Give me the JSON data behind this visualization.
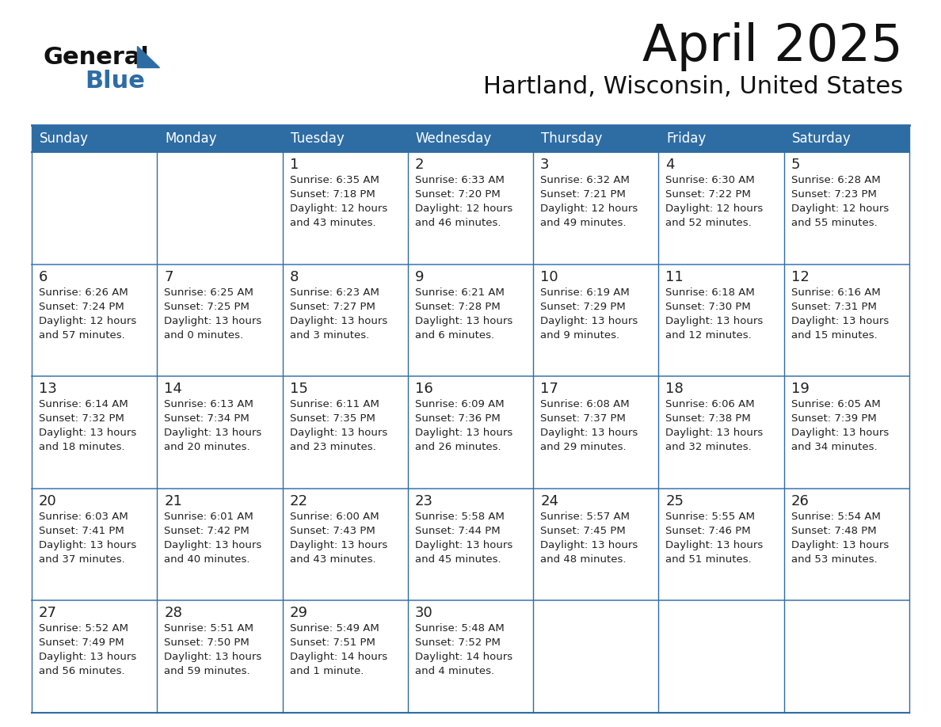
{
  "title": "April 2025",
  "subtitle": "Hartland, Wisconsin, United States",
  "header_bg": "#2E6DA4",
  "header_text": "#FFFFFF",
  "cell_bg": "#FFFFFF",
  "border_color": "#2E6DA4",
  "row_border_color": "#4A7FB5",
  "text_color": "#222222",
  "days_of_week": [
    "Sunday",
    "Monday",
    "Tuesday",
    "Wednesday",
    "Thursday",
    "Friday",
    "Saturday"
  ],
  "weeks": [
    [
      {
        "day": "",
        "info": ""
      },
      {
        "day": "",
        "info": ""
      },
      {
        "day": "1",
        "info": "Sunrise: 6:35 AM\nSunset: 7:18 PM\nDaylight: 12 hours\nand 43 minutes."
      },
      {
        "day": "2",
        "info": "Sunrise: 6:33 AM\nSunset: 7:20 PM\nDaylight: 12 hours\nand 46 minutes."
      },
      {
        "day": "3",
        "info": "Sunrise: 6:32 AM\nSunset: 7:21 PM\nDaylight: 12 hours\nand 49 minutes."
      },
      {
        "day": "4",
        "info": "Sunrise: 6:30 AM\nSunset: 7:22 PM\nDaylight: 12 hours\nand 52 minutes."
      },
      {
        "day": "5",
        "info": "Sunrise: 6:28 AM\nSunset: 7:23 PM\nDaylight: 12 hours\nand 55 minutes."
      }
    ],
    [
      {
        "day": "6",
        "info": "Sunrise: 6:26 AM\nSunset: 7:24 PM\nDaylight: 12 hours\nand 57 minutes."
      },
      {
        "day": "7",
        "info": "Sunrise: 6:25 AM\nSunset: 7:25 PM\nDaylight: 13 hours\nand 0 minutes."
      },
      {
        "day": "8",
        "info": "Sunrise: 6:23 AM\nSunset: 7:27 PM\nDaylight: 13 hours\nand 3 minutes."
      },
      {
        "day": "9",
        "info": "Sunrise: 6:21 AM\nSunset: 7:28 PM\nDaylight: 13 hours\nand 6 minutes."
      },
      {
        "day": "10",
        "info": "Sunrise: 6:19 AM\nSunset: 7:29 PM\nDaylight: 13 hours\nand 9 minutes."
      },
      {
        "day": "11",
        "info": "Sunrise: 6:18 AM\nSunset: 7:30 PM\nDaylight: 13 hours\nand 12 minutes."
      },
      {
        "day": "12",
        "info": "Sunrise: 6:16 AM\nSunset: 7:31 PM\nDaylight: 13 hours\nand 15 minutes."
      }
    ],
    [
      {
        "day": "13",
        "info": "Sunrise: 6:14 AM\nSunset: 7:32 PM\nDaylight: 13 hours\nand 18 minutes."
      },
      {
        "day": "14",
        "info": "Sunrise: 6:13 AM\nSunset: 7:34 PM\nDaylight: 13 hours\nand 20 minutes."
      },
      {
        "day": "15",
        "info": "Sunrise: 6:11 AM\nSunset: 7:35 PM\nDaylight: 13 hours\nand 23 minutes."
      },
      {
        "day": "16",
        "info": "Sunrise: 6:09 AM\nSunset: 7:36 PM\nDaylight: 13 hours\nand 26 minutes."
      },
      {
        "day": "17",
        "info": "Sunrise: 6:08 AM\nSunset: 7:37 PM\nDaylight: 13 hours\nand 29 minutes."
      },
      {
        "day": "18",
        "info": "Sunrise: 6:06 AM\nSunset: 7:38 PM\nDaylight: 13 hours\nand 32 minutes."
      },
      {
        "day": "19",
        "info": "Sunrise: 6:05 AM\nSunset: 7:39 PM\nDaylight: 13 hours\nand 34 minutes."
      }
    ],
    [
      {
        "day": "20",
        "info": "Sunrise: 6:03 AM\nSunset: 7:41 PM\nDaylight: 13 hours\nand 37 minutes."
      },
      {
        "day": "21",
        "info": "Sunrise: 6:01 AM\nSunset: 7:42 PM\nDaylight: 13 hours\nand 40 minutes."
      },
      {
        "day": "22",
        "info": "Sunrise: 6:00 AM\nSunset: 7:43 PM\nDaylight: 13 hours\nand 43 minutes."
      },
      {
        "day": "23",
        "info": "Sunrise: 5:58 AM\nSunset: 7:44 PM\nDaylight: 13 hours\nand 45 minutes."
      },
      {
        "day": "24",
        "info": "Sunrise: 5:57 AM\nSunset: 7:45 PM\nDaylight: 13 hours\nand 48 minutes."
      },
      {
        "day": "25",
        "info": "Sunrise: 5:55 AM\nSunset: 7:46 PM\nDaylight: 13 hours\nand 51 minutes."
      },
      {
        "day": "26",
        "info": "Sunrise: 5:54 AM\nSunset: 7:48 PM\nDaylight: 13 hours\nand 53 minutes."
      }
    ],
    [
      {
        "day": "27",
        "info": "Sunrise: 5:52 AM\nSunset: 7:49 PM\nDaylight: 13 hours\nand 56 minutes."
      },
      {
        "day": "28",
        "info": "Sunrise: 5:51 AM\nSunset: 7:50 PM\nDaylight: 13 hours\nand 59 minutes."
      },
      {
        "day": "29",
        "info": "Sunrise: 5:49 AM\nSunset: 7:51 PM\nDaylight: 14 hours\nand 1 minute."
      },
      {
        "day": "30",
        "info": "Sunrise: 5:48 AM\nSunset: 7:52 PM\nDaylight: 14 hours\nand 4 minutes."
      },
      {
        "day": "",
        "info": ""
      },
      {
        "day": "",
        "info": ""
      },
      {
        "day": "",
        "info": ""
      }
    ]
  ]
}
